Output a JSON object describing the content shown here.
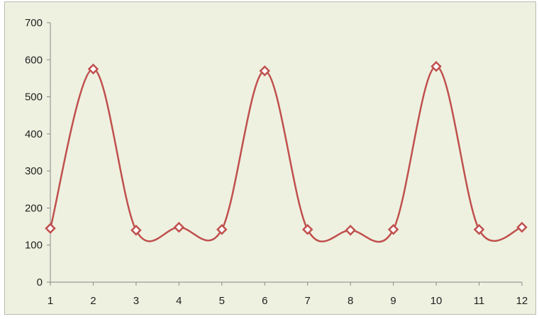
{
  "chart_data": {
    "type": "line",
    "smooth": true,
    "title": "",
    "xlabel": "",
    "ylabel": "",
    "legend": "none",
    "grid": false,
    "x": [
      1,
      2,
      3,
      4,
      5,
      6,
      7,
      8,
      9,
      10,
      11,
      12
    ],
    "series": [
      {
        "values": [
          145,
          575,
          140,
          148,
          142,
          570,
          142,
          140,
          142,
          582,
          142,
          148
        ],
        "color": "#c0504d",
        "marker": "diamond"
      }
    ],
    "ylim": [
      0,
      700
    ],
    "yticks": [
      0,
      100,
      200,
      300,
      400,
      500,
      600,
      700
    ],
    "xtick_labels": [
      "1",
      "2",
      "3",
      "4",
      "5",
      "6",
      "7",
      "8",
      "9",
      "10",
      "11",
      "12"
    ],
    "ytick_labels": [
      "0",
      "100",
      "200",
      "300",
      "400",
      "500",
      "600",
      "700"
    ]
  }
}
